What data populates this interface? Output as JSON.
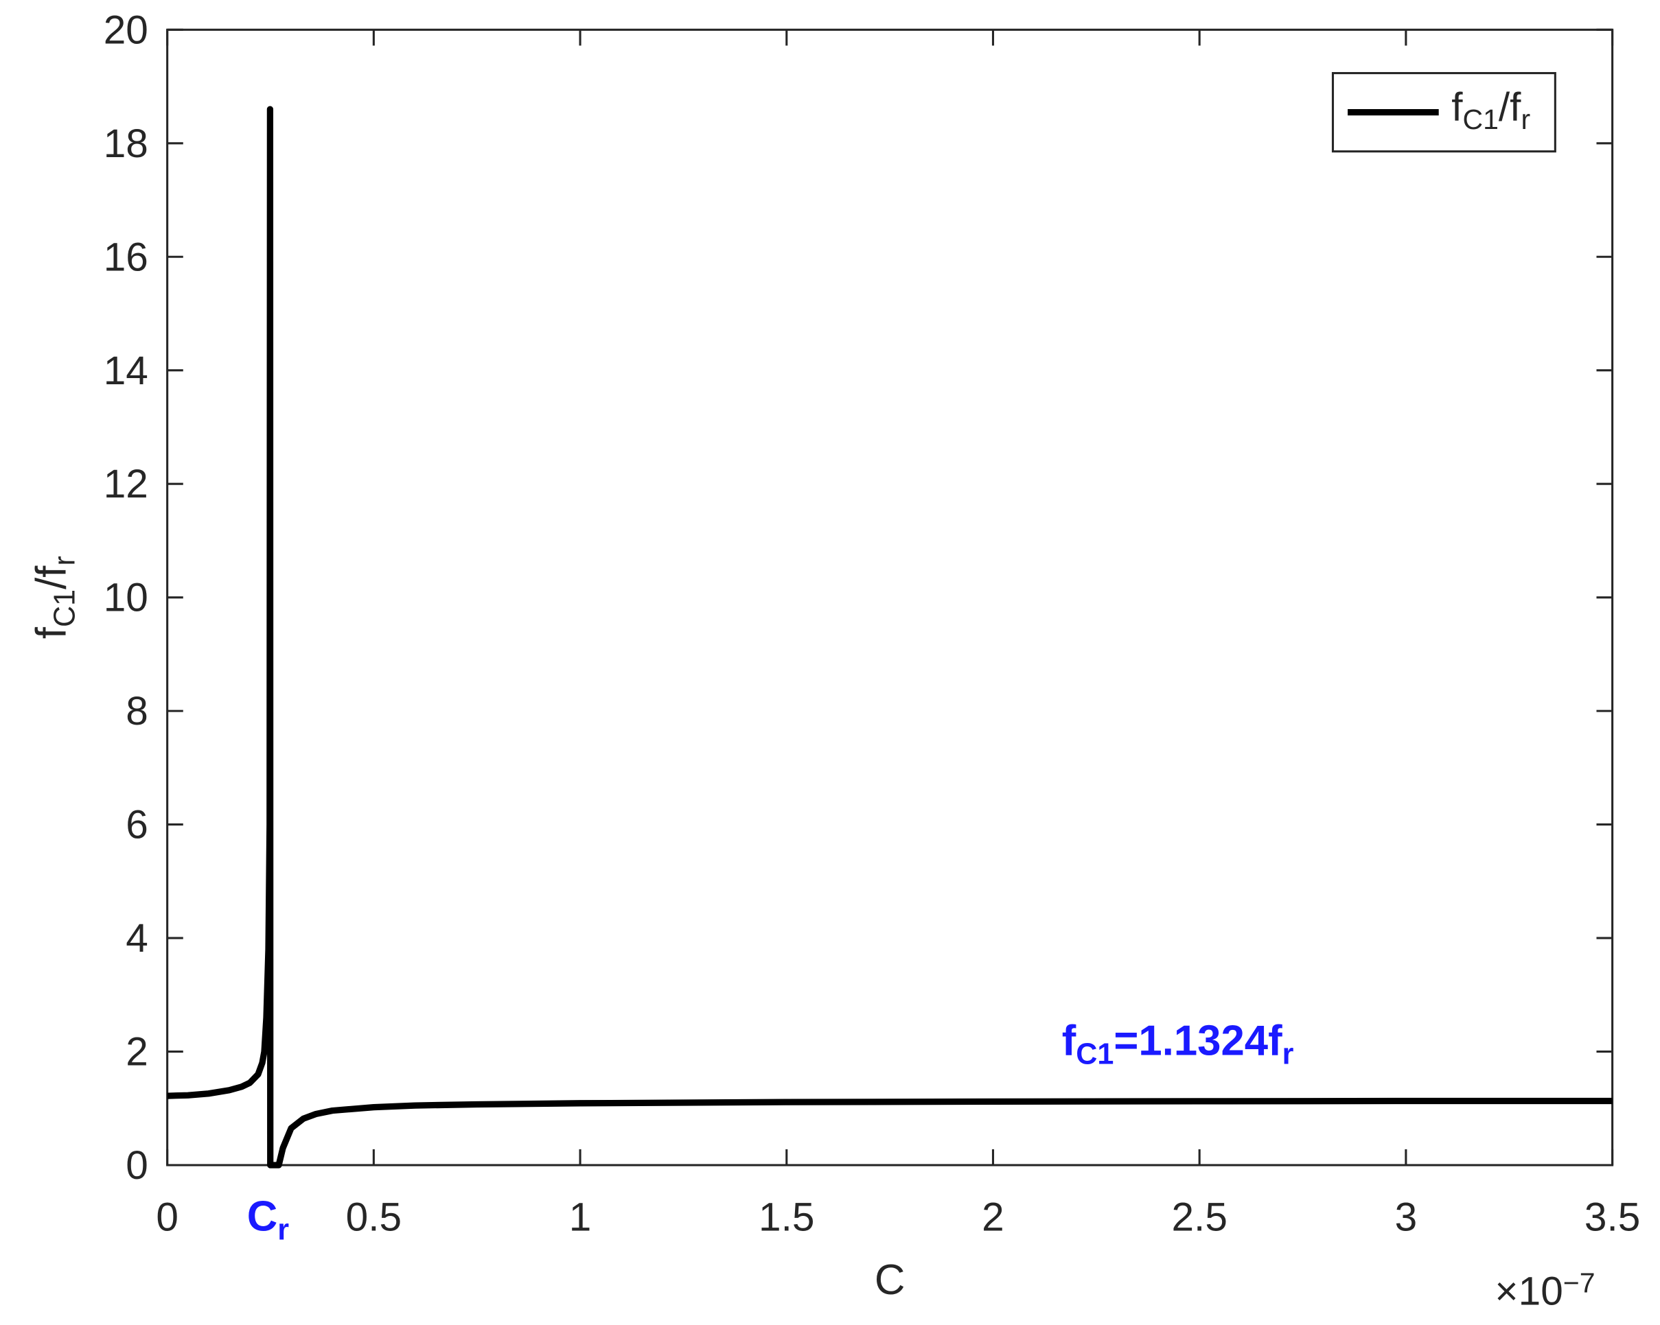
{
  "chart_data": {
    "type": "line",
    "xlabel": "C",
    "ylabel": [
      "f",
      "C1",
      "/f",
      "r"
    ],
    "x_multiplier": [
      "×10",
      "−7"
    ],
    "x": [
      0,
      0.05,
      0.1,
      0.15,
      0.18,
      0.2,
      0.22,
      0.23,
      0.235,
      0.24,
      0.245,
      0.248,
      0.249,
      0.2495,
      0.27,
      0.28,
      0.3,
      0.33,
      0.36,
      0.4,
      0.5,
      0.6,
      0.75,
      1,
      1.5,
      2,
      2.5,
      3,
      3.5
    ],
    "series": [
      {
        "name": [
          "f",
          "C1",
          "/f",
          "r"
        ],
        "color": "#000000",
        "values": [
          1.22,
          1.23,
          1.26,
          1.32,
          1.38,
          1.45,
          1.6,
          1.8,
          2.0,
          2.6,
          3.8,
          6,
          18.6,
          0,
          0,
          0.3,
          0.65,
          0.82,
          0.9,
          0.96,
          1.02,
          1.05,
          1.07,
          1.09,
          1.11,
          1.12,
          1.125,
          1.13,
          1.13
        ]
      }
    ],
    "xlim": [
      0,
      3.5
    ],
    "ylim": [
      0,
      20
    ],
    "xticks": [
      0,
      0.5,
      1,
      1.5,
      2,
      2.5,
      3,
      3.5
    ],
    "yticks": [
      0,
      2,
      4,
      6,
      8,
      10,
      12,
      14,
      16,
      18,
      20
    ],
    "grid": false,
    "legend": "upper right",
    "annotations": [
      {
        "text": [
          "C",
          "r"
        ],
        "x": 0.244
      },
      {
        "text": [
          "f",
          "C1",
          "=1.1324f",
          "r"
        ]
      }
    ]
  }
}
